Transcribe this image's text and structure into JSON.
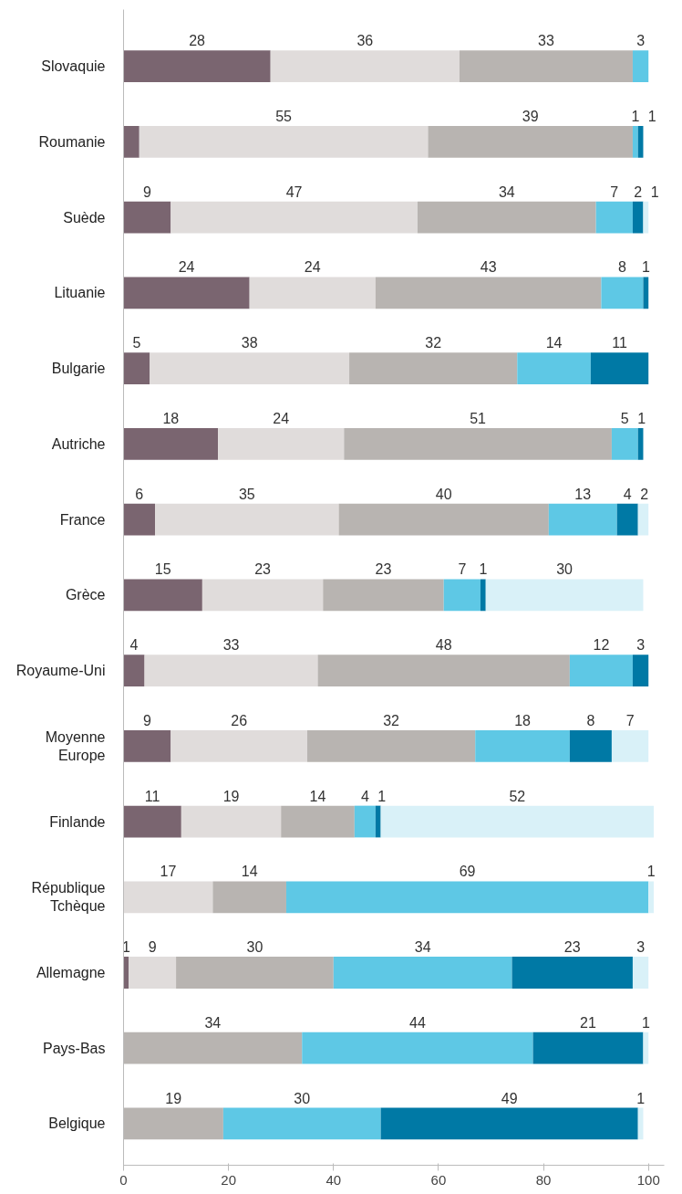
{
  "chart_data": {
    "type": "bar",
    "orientation": "horizontal",
    "stacked": true,
    "data_labels": true,
    "grid": false,
    "categories": [
      "Slovaquie",
      "Roumanie",
      "Suède",
      "Lituanie",
      "Bulgarie",
      "Autriche",
      "France",
      "Grèce",
      "Royaume-Uni",
      "Moyenne Europe",
      "Finlande",
      "République Tchèque",
      "Allemagne",
      "Pays-Bas",
      "Belgique"
    ],
    "series": [
      {
        "color": "#7a6570",
        "values": [
          28,
          3,
          9,
          24,
          5,
          18,
          6,
          15,
          4,
          9,
          11,
          null,
          1,
          null,
          null
        ],
        "value_labels": [
          "28",
          null,
          "9",
          "24",
          "5",
          "18",
          "6",
          "15",
          "4",
          "9",
          "11",
          null,
          "1",
          null,
          null
        ]
      },
      {
        "color": "#e0dcdb",
        "values": [
          36,
          55,
          47,
          24,
          38,
          24,
          35,
          23,
          33,
          26,
          19,
          17,
          9,
          null,
          null
        ]
      },
      {
        "color": "#b8b4b1",
        "values": [
          33,
          39,
          34,
          43,
          32,
          51,
          40,
          23,
          48,
          32,
          14,
          14,
          30,
          34,
          19
        ]
      },
      {
        "color": "#5ec8e5",
        "values": [
          3,
          1,
          7,
          8,
          14,
          5,
          13,
          7,
          12,
          18,
          4,
          69,
          34,
          44,
          30
        ]
      },
      {
        "color": "#0079a5",
        "values": [
          null,
          1,
          2,
          1,
          11,
          1,
          4,
          1,
          3,
          8,
          1,
          null,
          23,
          21,
          49
        ]
      },
      {
        "color": "#d9f1f8",
        "values": [
          null,
          null,
          1,
          null,
          null,
          null,
          2,
          30,
          null,
          7,
          52,
          1,
          3,
          1,
          1
        ]
      }
    ],
    "xlim": [
      0,
      103
    ],
    "xticks": [
      0,
      20,
      40,
      60,
      80,
      100
    ]
  }
}
